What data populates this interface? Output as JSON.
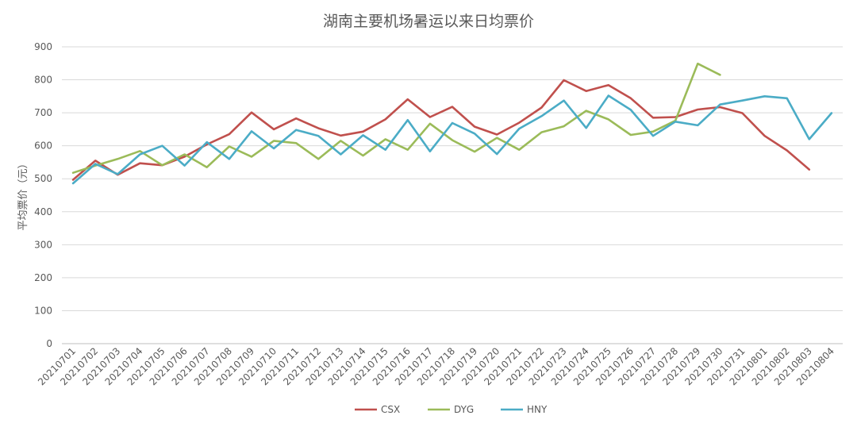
{
  "chart_data": {
    "type": "line",
    "title": "湖南主要机场暑运以来日均票价",
    "xlabel": "",
    "ylabel": "平均票价（元）",
    "ylim": [
      0,
      900
    ],
    "yticks": [
      0,
      100,
      200,
      300,
      400,
      500,
      600,
      700,
      800,
      900
    ],
    "grid": true,
    "legend": "bottom-center",
    "categories": [
      "20210701",
      "20210702",
      "20210703",
      "20210704",
      "20210705",
      "20210706",
      "20210707",
      "20210708",
      "20210709",
      "20210710",
      "20210711",
      "20210712",
      "20210713",
      "20210714",
      "20210715",
      "20210716",
      "20210717",
      "20210718",
      "20210719",
      "20210720",
      "20210721",
      "20210722",
      "20210723",
      "20210724",
      "20210725",
      "20210726",
      "20210727",
      "20210728",
      "20210729",
      "20210730",
      "20210731",
      "20210801",
      "20210802",
      "20210803",
      "20210804"
    ],
    "series": [
      {
        "name": "CSX",
        "color": "#c0504d",
        "values": [
          497,
          555,
          512,
          547,
          541,
          567,
          604,
          635,
          701,
          650,
          683,
          653,
          631,
          643,
          680,
          741,
          687,
          718,
          658,
          634,
          670,
          716,
          799,
          766,
          784,
          744,
          685,
          687,
          710,
          717,
          699,
          630,
          586,
          528,
          null
        ]
      },
      {
        "name": "DYG",
        "color": "#9bbb59",
        "values": [
          518,
          540,
          560,
          584,
          541,
          574,
          535,
          598,
          567,
          615,
          608,
          560,
          615,
          570,
          620,
          588,
          667,
          617,
          582,
          624,
          588,
          641,
          659,
          706,
          680,
          633,
          643,
          676,
          849,
          815,
          null,
          null,
          null,
          null,
          null
        ]
      },
      {
        "name": "HNY",
        "color": "#4bacc6",
        "values": [
          486,
          545,
          514,
          574,
          600,
          540,
          611,
          560,
          644,
          592,
          648,
          630,
          574,
          632,
          588,
          678,
          583,
          669,
          637,
          575,
          652,
          690,
          737,
          654,
          752,
          709,
          630,
          673,
          662,
          725,
          737,
          750,
          744,
          620,
          699
        ]
      }
    ]
  }
}
